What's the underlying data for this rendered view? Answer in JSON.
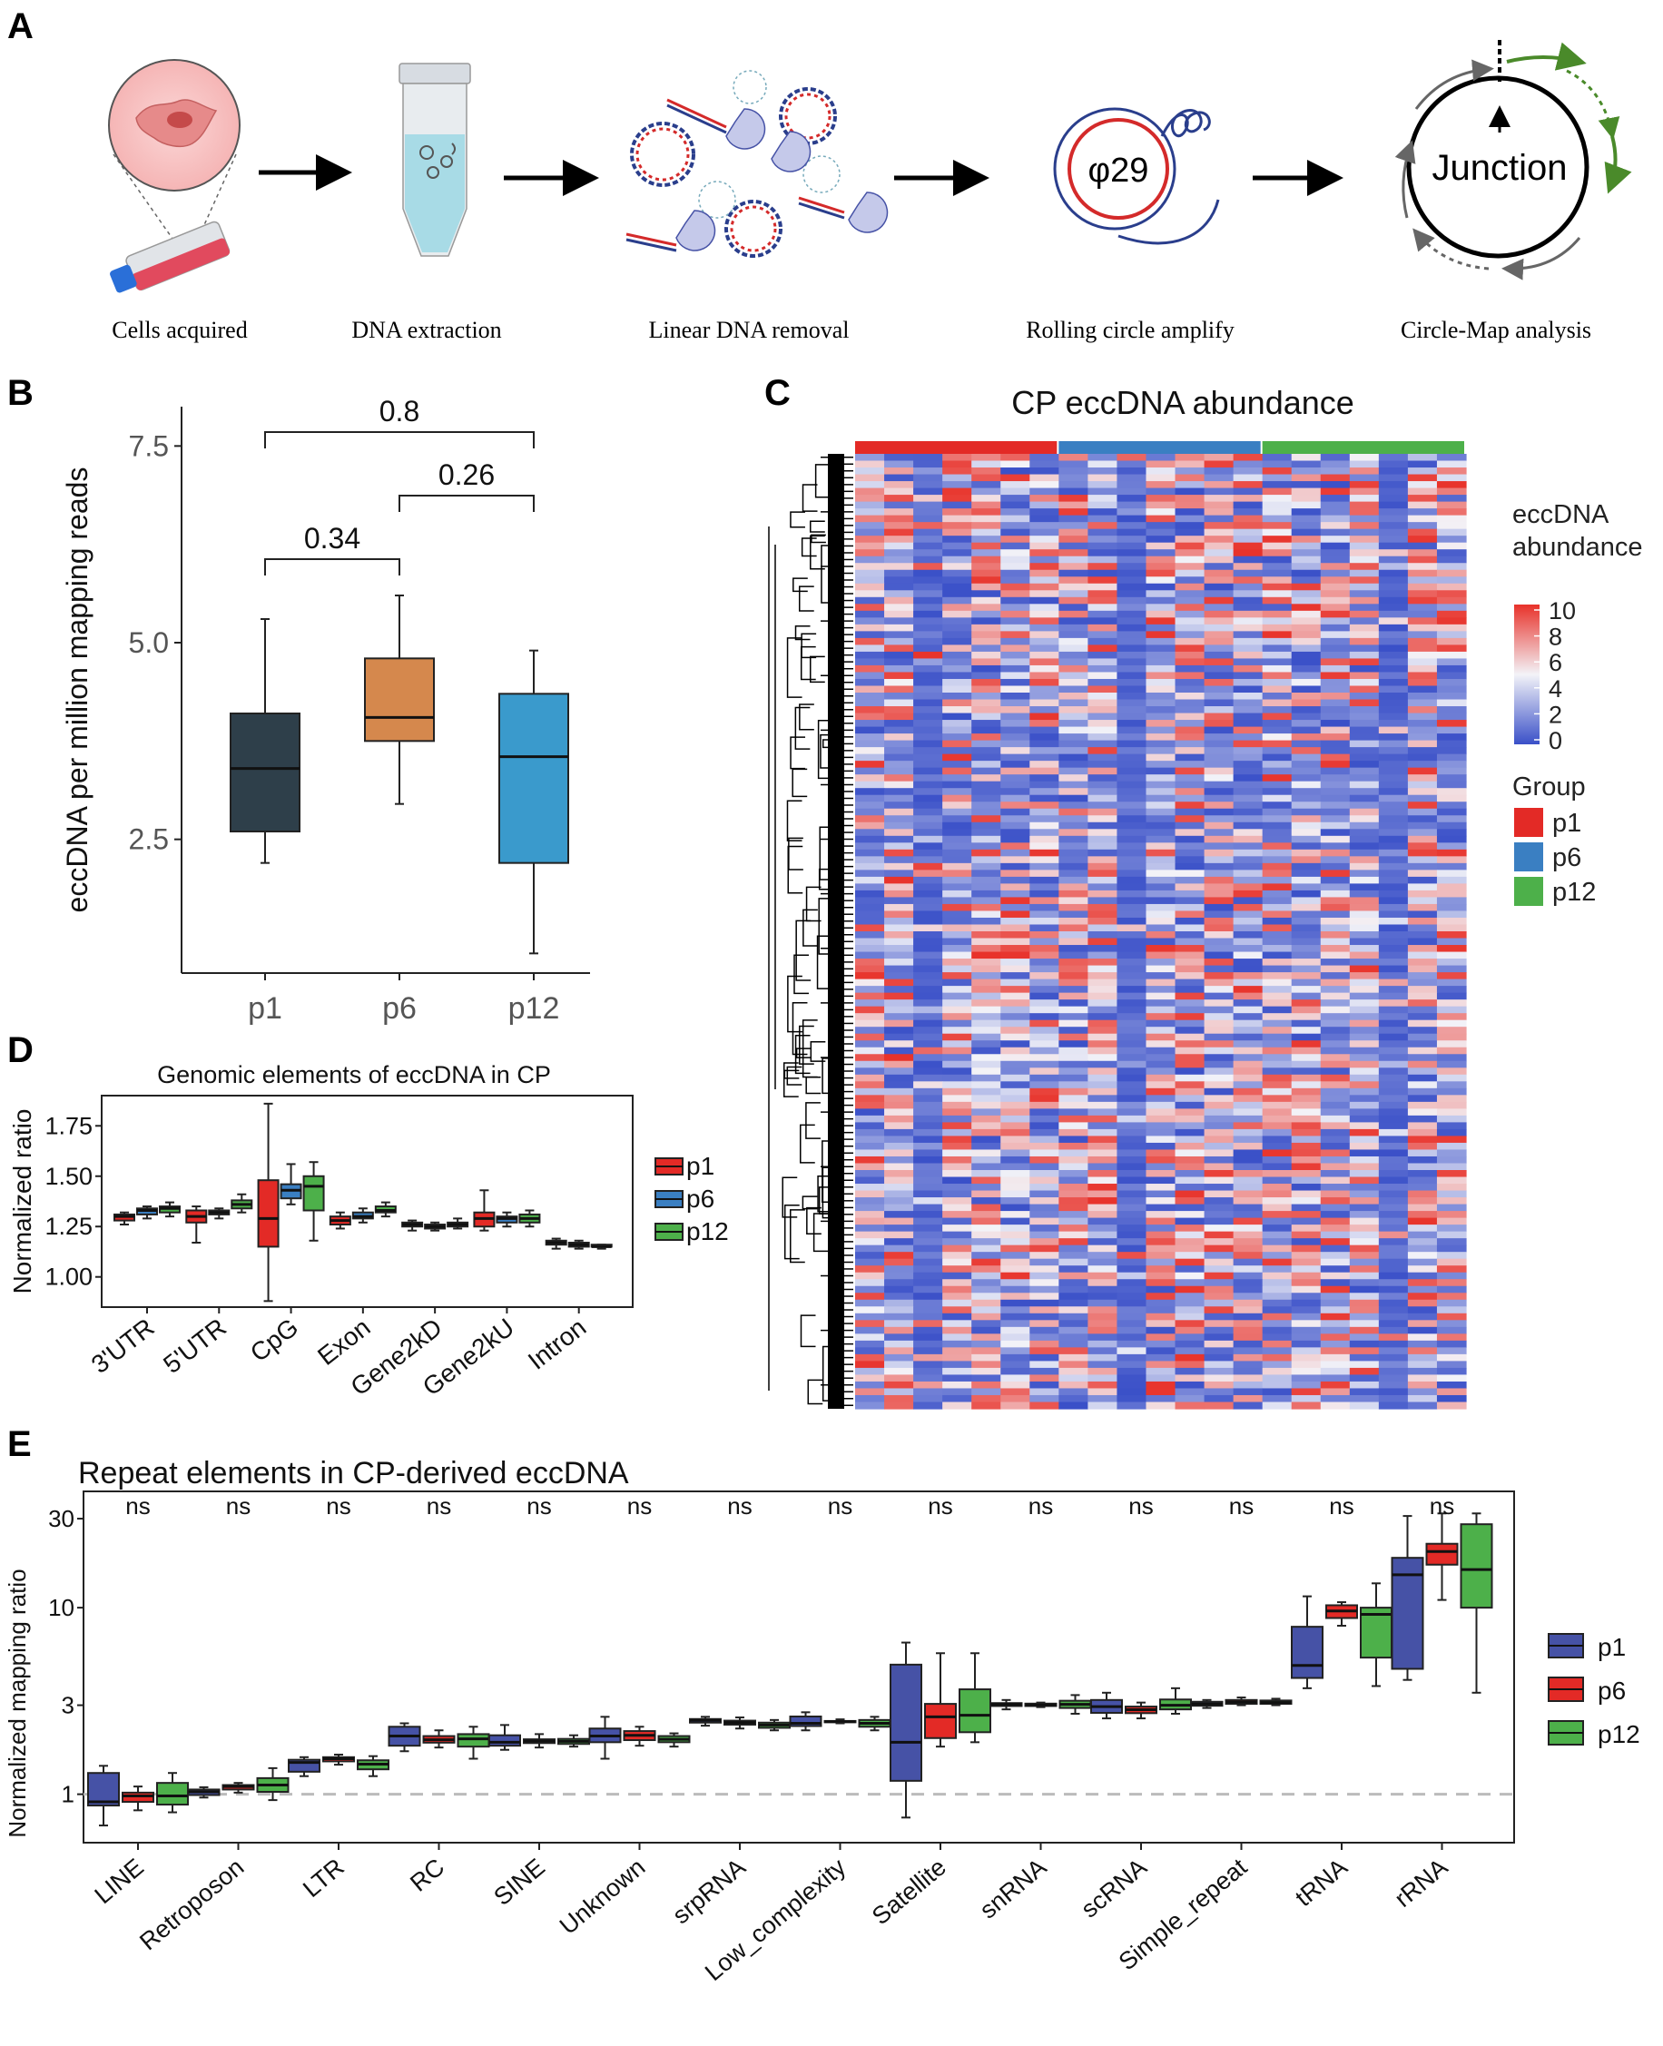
{
  "panels": {
    "a": {
      "letter": "A",
      "steps": [
        "Cells acquired",
        "DNA extraction",
        "Linear DNA removal",
        "Rolling circle amplify",
        "Circle-Map analysis"
      ],
      "polymerase_label": "φ29",
      "junction_label": "Junction"
    },
    "b": {
      "letter": "B"
    },
    "c": {
      "letter": "C"
    },
    "d": {
      "letter": "D"
    },
    "e": {
      "letter": "E"
    }
  },
  "colors": {
    "p1_box_b": "#2e3f4a",
    "p6_box_b": "#d5884d",
    "p12_box_b": "#3a9acc",
    "red": "#e32a26",
    "blue": "#3a7fc2",
    "green": "#4db04a",
    "navy": "#4652a6",
    "heat_low": "#3a50c8",
    "heat_mid": "#f3f3f8",
    "heat_high": "#e8322a"
  },
  "chart_data": [
    {
      "id": "B",
      "type": "box",
      "title": "",
      "ylabel": "eccDNA per million mapping reads",
      "xlabel": "",
      "categories": [
        "p1",
        "p6",
        "p12"
      ],
      "ylim": [
        0.8,
        8.0
      ],
      "yticks": [
        "2.5",
        "5.0",
        "7.5"
      ],
      "ytick_values": [
        2.5,
        5.0,
        7.5
      ],
      "boxes": [
        {
          "name": "p1",
          "min": 2.2,
          "q1": 2.6,
          "median": 3.4,
          "q3": 4.1,
          "max": 5.3
        },
        {
          "name": "p6",
          "min": 2.95,
          "q1": 3.75,
          "median": 4.05,
          "q3": 4.8,
          "max": 5.6
        },
        {
          "name": "p12",
          "min": 1.05,
          "q1": 2.2,
          "median": 3.55,
          "q3": 4.35,
          "max": 4.9
        }
      ],
      "comparisons": [
        {
          "a": "p1",
          "b": "p12",
          "p": "0.8"
        },
        {
          "a": "p6",
          "b": "p12",
          "p": "0.26"
        },
        {
          "a": "p1",
          "b": "p6",
          "p": "0.34"
        }
      ]
    },
    {
      "id": "C",
      "type": "heatmap",
      "title": "CP eccDNA abundance",
      "legend_title": [
        "eccDNA",
        "abundance"
      ],
      "scale_ticks": [
        "10",
        "8",
        "6",
        "4",
        "2",
        "0"
      ],
      "scale_range": [
        0,
        10
      ],
      "group_title": "Group",
      "groups": [
        {
          "name": "p1",
          "columns": 7
        },
        {
          "name": "p6",
          "columns": 7
        },
        {
          "name": "p12",
          "columns": 7
        }
      ]
    },
    {
      "id": "D",
      "type": "box",
      "title": "Genomic elements of eccDNA in CP",
      "ylabel": "Normalized ratio",
      "categories": [
        "3'UTR",
        "5'UTR",
        "CpG",
        "Exon",
        "Gene2kD",
        "Gene2kU",
        "Intron"
      ],
      "ylim": [
        0.85,
        1.9
      ],
      "yticks": [
        "1.00",
        "1.25",
        "1.50",
        "1.75"
      ],
      "ytick_values": [
        1.0,
        1.25,
        1.5,
        1.75
      ],
      "legend": [
        "p1",
        "p6",
        "p12"
      ],
      "series": [
        {
          "name": "p1",
          "boxes": [
            [
              1.26,
              1.28,
              1.3,
              1.31,
              1.32
            ],
            [
              1.17,
              1.27,
              1.3,
              1.33,
              1.35
            ],
            [
              0.88,
              1.15,
              1.29,
              1.48,
              1.86
            ],
            [
              1.24,
              1.26,
              1.28,
              1.3,
              1.32
            ],
            [
              1.23,
              1.25,
              1.26,
              1.27,
              1.28
            ],
            [
              1.23,
              1.25,
              1.29,
              1.32,
              1.43
            ],
            [
              1.14,
              1.16,
              1.17,
              1.18,
              1.19
            ]
          ]
        },
        {
          "name": "p6",
          "boxes": [
            [
              1.29,
              1.31,
              1.33,
              1.34,
              1.35
            ],
            [
              1.29,
              1.31,
              1.32,
              1.33,
              1.34
            ],
            [
              1.36,
              1.39,
              1.43,
              1.46,
              1.56
            ],
            [
              1.27,
              1.29,
              1.3,
              1.32,
              1.34
            ],
            [
              1.23,
              1.24,
              1.25,
              1.26,
              1.27
            ],
            [
              1.25,
              1.27,
              1.29,
              1.3,
              1.32
            ],
            [
              1.14,
              1.15,
              1.16,
              1.17,
              1.18
            ]
          ]
        },
        {
          "name": "p12",
          "boxes": [
            [
              1.3,
              1.32,
              1.34,
              1.35,
              1.37
            ],
            [
              1.32,
              1.34,
              1.36,
              1.38,
              1.41
            ],
            [
              1.18,
              1.33,
              1.45,
              1.5,
              1.57
            ],
            [
              1.3,
              1.32,
              1.33,
              1.35,
              1.37
            ],
            [
              1.24,
              1.25,
              1.26,
              1.27,
              1.29
            ],
            [
              1.25,
              1.27,
              1.29,
              1.31,
              1.33
            ],
            [
              1.14,
              1.15,
              1.15,
              1.16,
              1.16
            ]
          ]
        }
      ]
    },
    {
      "id": "E",
      "type": "box",
      "title": "Repeat elements in CP-derived eccDNA",
      "ylabel": "Normalized mapping ratio",
      "yscale": "log",
      "ylim": [
        0.55,
        42
      ],
      "yticks": [
        "1",
        "3",
        "10",
        "30"
      ],
      "ytick_values": [
        1,
        3,
        10,
        30
      ],
      "reference_line": 1,
      "categories": [
        "LINE",
        "Retroposon",
        "LTR",
        "RC",
        "SINE",
        "Unknown",
        "srpRNA",
        "Low_complexity",
        "Satellite",
        "snRNA",
        "scRNA",
        "Simple_repeat",
        "tRNA",
        "rRNA"
      ],
      "significance": [
        "ns",
        "ns",
        "ns",
        "ns",
        "ns",
        "ns",
        "ns",
        "ns",
        "ns",
        "ns",
        "ns",
        "ns",
        "ns",
        "ns"
      ],
      "legend": [
        "p1",
        "p6",
        "p12"
      ],
      "series": [
        {
          "name": "p1",
          "boxes": [
            [
              0.68,
              0.87,
              0.91,
              1.3,
              1.42
            ],
            [
              0.96,
              0.99,
              1.03,
              1.06,
              1.09
            ],
            [
              1.25,
              1.32,
              1.48,
              1.53,
              1.58
            ],
            [
              1.7,
              1.82,
              2.05,
              2.3,
              2.4
            ],
            [
              1.73,
              1.82,
              1.9,
              2.07,
              2.35
            ],
            [
              1.55,
              1.9,
              2.05,
              2.25,
              2.6
            ],
            [
              2.33,
              2.42,
              2.49,
              2.53,
              2.6
            ],
            [
              2.2,
              2.32,
              2.4,
              2.61,
              2.75
            ],
            [
              0.75,
              1.18,
              1.9,
              4.95,
              6.5
            ],
            [
              2.85,
              2.97,
              3.03,
              3.08,
              3.2
            ],
            [
              2.55,
              2.73,
              2.95,
              3.2,
              3.5
            ],
            [
              2.9,
              2.98,
              3.05,
              3.13,
              3.2
            ],
            [
              3.7,
              4.2,
              4.9,
              7.9,
              11.5
            ],
            [
              4.1,
              4.7,
              15.0,
              18.5,
              31.0
            ]
          ]
        },
        {
          "name": "p6",
          "boxes": [
            [
              0.82,
              0.91,
              0.98,
              1.02,
              1.1
            ],
            [
              1.02,
              1.06,
              1.1,
              1.12,
              1.15
            ],
            [
              1.44,
              1.5,
              1.55,
              1.58,
              1.63
            ],
            [
              1.78,
              1.89,
              1.96,
              2.05,
              2.2
            ],
            [
              1.78,
              1.88,
              1.93,
              1.97,
              2.1
            ],
            [
              1.82,
              1.95,
              2.07,
              2.18,
              2.3
            ],
            [
              2.25,
              2.36,
              2.42,
              2.48,
              2.58
            ],
            [
              2.4,
              2.43,
              2.45,
              2.47,
              2.52
            ],
            [
              1.8,
              2.0,
              2.6,
              3.05,
              5.7
            ],
            [
              2.93,
              2.97,
              3.01,
              3.06,
              3.1
            ],
            [
              2.55,
              2.72,
              2.84,
              2.95,
              3.1
            ],
            [
              3.0,
              3.05,
              3.12,
              3.2,
              3.3
            ],
            [
              8.0,
              8.8,
              9.6,
              10.3,
              10.7
            ],
            [
              11.0,
              17.0,
              20.0,
              22.0,
              32.0
            ]
          ]
        },
        {
          "name": "p12",
          "boxes": [
            [
              0.8,
              0.88,
              0.98,
              1.15,
              1.3
            ],
            [
              0.93,
              1.03,
              1.12,
              1.22,
              1.38
            ],
            [
              1.25,
              1.36,
              1.45,
              1.52,
              1.6
            ],
            [
              1.55,
              1.8,
              1.98,
              2.1,
              2.3
            ],
            [
              1.8,
              1.86,
              1.92,
              1.98,
              2.07
            ],
            [
              1.8,
              1.9,
              1.97,
              2.05,
              2.12
            ],
            [
              2.2,
              2.27,
              2.35,
              2.42,
              2.5
            ],
            [
              2.2,
              2.3,
              2.4,
              2.5,
              2.6
            ],
            [
              1.9,
              2.15,
              2.65,
              3.65,
              5.7
            ],
            [
              2.7,
              2.9,
              3.03,
              3.17,
              3.4
            ],
            [
              2.7,
              2.85,
              3.0,
              3.22,
              3.7
            ],
            [
              3.0,
              3.05,
              3.1,
              3.18,
              3.25
            ],
            [
              3.8,
              5.4,
              9.2,
              10.0,
              13.5
            ],
            [
              3.5,
              10.0,
              16.0,
              28.0,
              32.0
            ]
          ]
        }
      ]
    }
  ]
}
